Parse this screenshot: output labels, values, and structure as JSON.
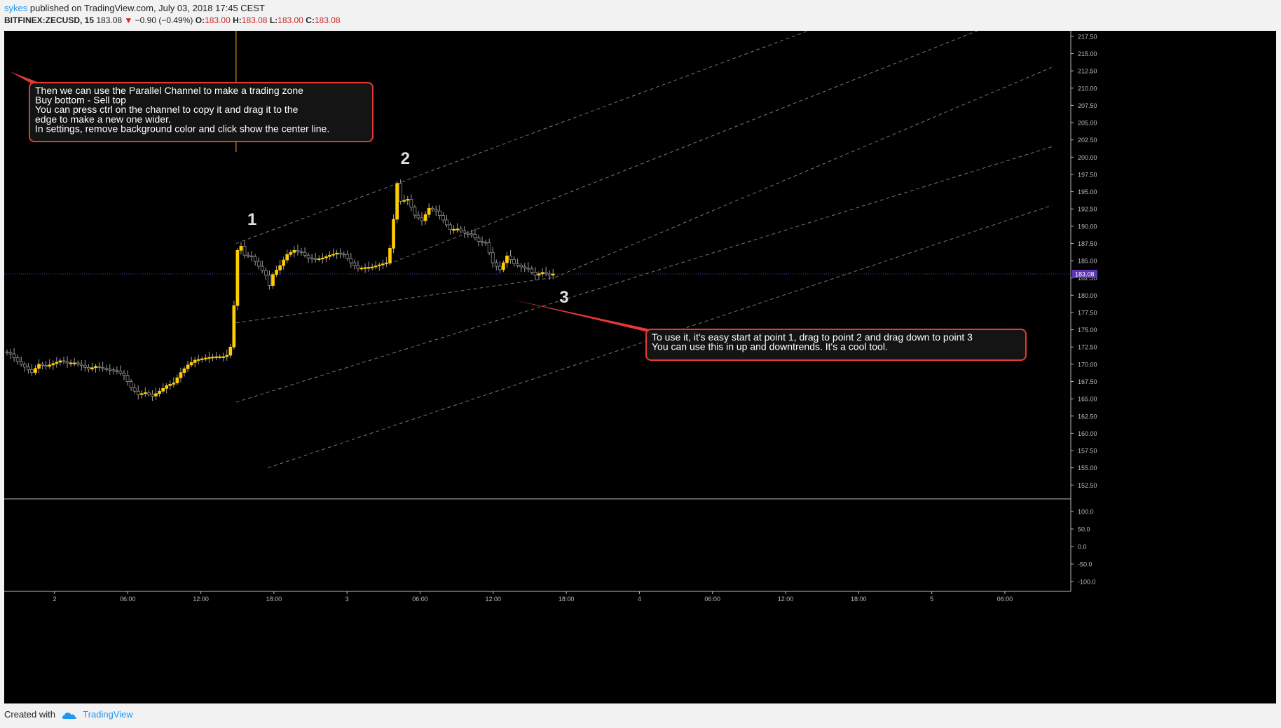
{
  "header": {
    "author": "sykes",
    "published": "published on TradingView.com, July 03, 2018 17:45 CEST"
  },
  "symbol_line": {
    "symbol": "BITFINEX:ZECUSD, 15",
    "last": "183.08",
    "change_arrow": "▼",
    "change": "−0.90 (−0.49%)",
    "o_label": "O:",
    "o": "183.00",
    "h_label": "H:",
    "h": "183.08",
    "l_label": "L:",
    "l": "183.00",
    "c_label": "C:",
    "c": "183.08"
  },
  "footer": {
    "created_with": "Created with",
    "brand": "TradingView"
  },
  "annotations": {
    "box1": [
      "Then we can use the Parallel Channel to make a trading zone",
      "Buy bottom - Sell top",
      "You can press ctrl on the channel to copy it and drag it to the",
      "edge to make a new one wider.",
      "In settings, remove background color and click show the center line."
    ],
    "box2": [
      "To use it, it's easy start at point 1, drag to point 2 and drag down to point 3",
      "You can use this in up and downtrends. It's a cool tool."
    ],
    "points": [
      "1",
      "2",
      "3"
    ]
  },
  "colors": {
    "background": "#000000",
    "candle_up": "#ffcc00",
    "candle_down": "#000000",
    "wick": "#9e9e9e",
    "annotation_border": "#e53935",
    "last_price_badge": "#5e35b1",
    "channel": "#9e9e9e"
  },
  "chart_data": {
    "type": "candlestick",
    "y_ticks": [
      "217.50",
      "215.00",
      "212.50",
      "210.00",
      "207.50",
      "205.00",
      "202.50",
      "200.00",
      "197.50",
      "195.00",
      "192.50",
      "190.00",
      "187.50",
      "185.00",
      "182.50",
      "180.00",
      "177.50",
      "175.00",
      "172.50",
      "170.00",
      "167.50",
      "165.00",
      "162.50",
      "160.00",
      "157.50",
      "155.00",
      "152.50"
    ],
    "ylim": [
      150.5,
      218.3
    ],
    "last_price": "183.08",
    "osc_ticks": [
      "100.0",
      "50.0",
      "0.0",
      "-50.0",
      "-100.0"
    ],
    "x_ticks": [
      "2",
      "06:00",
      "12:00",
      "18:00",
      "3",
      "06:00",
      "12:00",
      "18:00",
      "4",
      "06:00",
      "12:00",
      "18:00",
      "5",
      "06:00"
    ],
    "close_path": [
      [
        0,
        171.8
      ],
      [
        2,
        171.5
      ],
      [
        4,
        170.4
      ],
      [
        6,
        169.6
      ],
      [
        8,
        168.8
      ],
      [
        10,
        170.0
      ],
      [
        12,
        169.7
      ],
      [
        14,
        170.1
      ],
      [
        16,
        170.5
      ],
      [
        18,
        170.2
      ],
      [
        20,
        170.2
      ],
      [
        22,
        169.8
      ],
      [
        24,
        169.3
      ],
      [
        26,
        169.7
      ],
      [
        28,
        169.4
      ],
      [
        30,
        169.2
      ],
      [
        32,
        169.0
      ],
      [
        34,
        168.4
      ],
      [
        36,
        166.6
      ],
      [
        38,
        165.6
      ],
      [
        40,
        165.9
      ],
      [
        42,
        165.4
      ],
      [
        44,
        166.1
      ],
      [
        46,
        166.9
      ],
      [
        48,
        167.3
      ],
      [
        50,
        168.8
      ],
      [
        52,
        169.9
      ],
      [
        54,
        170.6
      ],
      [
        56,
        170.8
      ],
      [
        58,
        171.0
      ],
      [
        60,
        171.1
      ],
      [
        62,
        171.1
      ],
      [
        63,
        171.3
      ],
      [
        64,
        172.5
      ],
      [
        65,
        178.5
      ],
      [
        66,
        186.5
      ],
      [
        67,
        187.1
      ],
      [
        68,
        185.8
      ],
      [
        70,
        185.6
      ],
      [
        72,
        184.2
      ],
      [
        74,
        182.9
      ],
      [
        75,
        181.4
      ],
      [
        76,
        183.0
      ],
      [
        78,
        184.3
      ],
      [
        80,
        185.9
      ],
      [
        82,
        186.5
      ],
      [
        84,
        186.2
      ],
      [
        86,
        185.4
      ],
      [
        88,
        185.2
      ],
      [
        90,
        185.4
      ],
      [
        92,
        185.8
      ],
      [
        94,
        186.1
      ],
      [
        96,
        185.9
      ],
      [
        98,
        184.7
      ],
      [
        100,
        183.9
      ],
      [
        102,
        184.0
      ],
      [
        104,
        184.1
      ],
      [
        106,
        184.4
      ],
      [
        108,
        184.7
      ],
      [
        109,
        186.8
      ],
      [
        110,
        191.0
      ],
      [
        111,
        196.2
      ],
      [
        112,
        193.6
      ],
      [
        114,
        193.9
      ],
      [
        116,
        191.6
      ],
      [
        118,
        190.8
      ],
      [
        120,
        192.6
      ],
      [
        122,
        192.2
      ],
      [
        124,
        190.9
      ],
      [
        126,
        189.5
      ],
      [
        128,
        189.6
      ],
      [
        130,
        189.0
      ],
      [
        132,
        188.8
      ],
      [
        134,
        187.8
      ],
      [
        136,
        187.6
      ],
      [
        138,
        184.7
      ],
      [
        140,
        183.7
      ],
      [
        142,
        185.7
      ],
      [
        144,
        184.6
      ],
      [
        146,
        184.1
      ],
      [
        148,
        183.8
      ],
      [
        150,
        182.9
      ],
      [
        152,
        183.3
      ],
      [
        154,
        182.9
      ],
      [
        155,
        183.08
      ]
    ],
    "channels": [
      {
        "name": "channel-a-top",
        "from": [
          65,
          187.5
        ],
        "to": [
          230,
          219.0
        ]
      },
      {
        "name": "channel-a-bottom",
        "from": [
          65,
          176.0
        ],
        "to": [
          155,
          182.6
        ]
      },
      {
        "name": "channel-a-ext",
        "from": [
          155,
          182.6
        ],
        "to": [
          295,
          213.0
        ]
      },
      {
        "name": "channel-b-top",
        "from": [
          65,
          164.5
        ],
        "to": [
          295,
          201.5
        ]
      },
      {
        "name": "channel-b-bottom",
        "from": [
          74,
          155.0
        ],
        "to": [
          295,
          193.0
        ]
      },
      {
        "name": "channel-c-top",
        "from": [
          108,
          184.5
        ],
        "to": [
          275,
          218.5
        ]
      }
    ],
    "crosshair_x_index": 65
  }
}
